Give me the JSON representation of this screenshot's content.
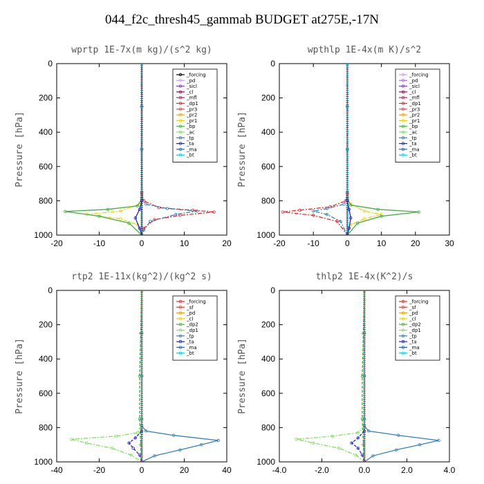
{
  "title": "044_f2c_thresh45_gammab  BUDGET at275E,-17N",
  "chart_data": [
    {
      "type": "line",
      "title": "wprtp  1E-7x(m kg)/(s^2 kg)",
      "ylabel": "Pressure [hPa]",
      "xlim": [
        -20,
        20
      ],
      "ylim": [
        0,
        1000
      ],
      "xticks": [
        "-20",
        "-10",
        "0",
        "10",
        "20"
      ],
      "yticks": [
        "0",
        "200",
        "400",
        "600",
        "800",
        "1000"
      ],
      "series": [
        {
          "name": "_forcing",
          "color": "#000000",
          "x": [
            0,
            0,
            0,
            0,
            0
          ],
          "y": [
            0,
            250,
            500,
            750,
            1000
          ]
        },
        {
          "name": "_pd",
          "color": "#c8a0e6",
          "x": [
            0,
            0,
            0,
            0,
            0
          ],
          "y": [
            0,
            250,
            500,
            750,
            1000
          ]
        },
        {
          "name": "_sicl",
          "color": "#8040c0",
          "x": [
            0,
            0,
            0,
            0,
            0
          ],
          "y": [
            0,
            250,
            500,
            750,
            1000
          ]
        },
        {
          "name": "_cl",
          "color": "#a00050",
          "x": [
            0,
            0,
            0,
            0,
            0
          ],
          "y": [
            0,
            250,
            500,
            750,
            1000
          ]
        },
        {
          "name": "_mfl",
          "color": "#d01060",
          "x": [
            0,
            0,
            0,
            0,
            0
          ],
          "y": [
            0,
            250,
            500,
            750,
            1000
          ]
        },
        {
          "name": "_dp1",
          "color": "#ff2020",
          "x": [
            0,
            0.5,
            4,
            12,
            17,
            9,
            3,
            0.5,
            0
          ],
          "y": [
            760,
            800,
            840,
            855,
            865,
            885,
            910,
            960,
            1000
          ]
        },
        {
          "name": "_pr3",
          "color": "#ff4040",
          "x": [
            0,
            0,
            0,
            0,
            0
          ],
          "y": [
            0,
            250,
            500,
            750,
            1000
          ]
        },
        {
          "name": "_pr2",
          "color": "#ffa000",
          "x": [
            0,
            0,
            0,
            0,
            0
          ],
          "y": [
            0,
            250,
            500,
            750,
            1000
          ]
        },
        {
          "name": "_pr1",
          "color": "#f0d000",
          "x": [
            0,
            -0.5,
            -5,
            -13,
            -5,
            -1,
            0
          ],
          "y": [
            780,
            820,
            860,
            880,
            905,
            940,
            1000
          ]
        },
        {
          "name": "_bp",
          "color": "#40b040",
          "x": [
            0,
            -1,
            -8,
            -18,
            -10,
            -3,
            0
          ],
          "y": [
            790,
            830,
            850,
            862,
            890,
            930,
            1000
          ]
        },
        {
          "name": "_ac",
          "color": "#80e060",
          "x": [
            0,
            0,
            0,
            0,
            0
          ],
          "y": [
            0,
            250,
            500,
            750,
            1000
          ]
        },
        {
          "name": "_tp",
          "color": "#3080c0",
          "x": [
            0,
            1,
            6,
            13,
            8,
            2,
            0.5,
            0
          ],
          "y": [
            780,
            820,
            845,
            860,
            880,
            920,
            970,
            1000
          ]
        },
        {
          "name": "_ta",
          "color": "#2020d0",
          "x": [
            0,
            -0.5,
            -1.5,
            -0.5,
            0
          ],
          "y": [
            800,
            850,
            900,
            960,
            1000
          ]
        },
        {
          "name": "_ma",
          "color": "#2060c0",
          "x": [
            0,
            0,
            0,
            0,
            0
          ],
          "y": [
            0,
            250,
            500,
            750,
            1000
          ]
        },
        {
          "name": "_bt",
          "color": "#00d0e0",
          "x": [
            0,
            0,
            0,
            0,
            0
          ],
          "y": [
            0,
            250,
            500,
            750,
            1000
          ]
        }
      ],
      "legend_placement": "top-right"
    },
    {
      "type": "line",
      "title": "wpthlp  1E-4x(m K)/s^2",
      "ylabel": "Pressure [hPa]",
      "xlim": [
        -20,
        30
      ],
      "ylim": [
        0,
        1000
      ],
      "xticks": [
        "-20",
        "-10",
        "0",
        "10",
        "20",
        "30"
      ],
      "yticks": [
        "0",
        "200",
        "400",
        "600",
        "800",
        "1000"
      ],
      "series": [
        {
          "name": "_forcing",
          "color": "#c8a0e6",
          "x": [
            0,
            0,
            0,
            0,
            0
          ],
          "y": [
            0,
            250,
            500,
            750,
            1000
          ]
        },
        {
          "name": "_pd",
          "color": "#b070d0",
          "x": [
            0,
            0,
            0,
            0,
            0
          ],
          "y": [
            0,
            250,
            500,
            750,
            1000
          ]
        },
        {
          "name": "_sicl",
          "color": "#8040c0",
          "x": [
            0,
            0,
            0,
            0,
            0
          ],
          "y": [
            0,
            250,
            500,
            750,
            1000
          ]
        },
        {
          "name": "_cl",
          "color": "#a00050",
          "x": [
            0,
            0,
            0,
            0,
            0
          ],
          "y": [
            0,
            250,
            500,
            750,
            1000
          ]
        },
        {
          "name": "_mfl",
          "color": "#d01060",
          "x": [
            0,
            0,
            0,
            0,
            0
          ],
          "y": [
            0,
            250,
            500,
            750,
            1000
          ]
        },
        {
          "name": "_dp1",
          "color": "#ff2020",
          "x": [
            0,
            -0.5,
            -5,
            -14,
            -19,
            -10,
            -3,
            0
          ],
          "y": [
            760,
            800,
            835,
            855,
            865,
            885,
            920,
            1000
          ]
        },
        {
          "name": "_pr3",
          "color": "#ff4040",
          "x": [
            0,
            0,
            0,
            0,
            0
          ],
          "y": [
            0,
            250,
            500,
            750,
            1000
          ]
        },
        {
          "name": "_pr2",
          "color": "#ffa000",
          "x": [
            0,
            0,
            0,
            0,
            0
          ],
          "y": [
            0,
            250,
            500,
            750,
            1000
          ]
        },
        {
          "name": "_pr1",
          "color": "#f0d000",
          "x": [
            0,
            1,
            5,
            10,
            5,
            1,
            0
          ],
          "y": [
            780,
            820,
            860,
            880,
            905,
            940,
            1000
          ]
        },
        {
          "name": "_bp",
          "color": "#40b040",
          "x": [
            0,
            1,
            9,
            21,
            10,
            3,
            0
          ],
          "y": [
            790,
            825,
            850,
            865,
            890,
            930,
            1000
          ]
        },
        {
          "name": "_ac",
          "color": "#80e060",
          "x": [
            0,
            0,
            0,
            0,
            0
          ],
          "y": [
            0,
            250,
            500,
            750,
            1000
          ]
        },
        {
          "name": "_tp",
          "color": "#3080c0",
          "x": [
            0,
            -1,
            -6,
            -10,
            -6,
            -2,
            0
          ],
          "y": [
            780,
            820,
            845,
            860,
            880,
            920,
            1000
          ]
        },
        {
          "name": "_ta",
          "color": "#2020d0",
          "x": [
            0,
            0.5,
            1,
            0.5,
            0
          ],
          "y": [
            800,
            850,
            900,
            960,
            1000
          ]
        },
        {
          "name": "_ma",
          "color": "#2060c0",
          "x": [
            0,
            0,
            0,
            0,
            0
          ],
          "y": [
            0,
            250,
            500,
            750,
            1000
          ]
        },
        {
          "name": "_bt",
          "color": "#00d0e0",
          "x": [
            0,
            0,
            0,
            0,
            0
          ],
          "y": [
            0,
            250,
            500,
            750,
            1000
          ]
        }
      ],
      "legend_placement": "top-right"
    },
    {
      "type": "line",
      "title": "rtp2  1E-11x(kg^2)/(kg^2 s)",
      "ylabel": "Pressure [hPa]",
      "xlim": [
        -40,
        40
      ],
      "ylim": [
        0,
        1000
      ],
      "xticks": [
        "-40",
        "-20",
        "0",
        "20",
        "40"
      ],
      "yticks": [
        "0",
        "200",
        "400",
        "600",
        "800",
        "1000"
      ],
      "series": [
        {
          "name": "_forcing",
          "color": "#ff2020",
          "x": [
            0,
            0,
            0,
            0,
            0
          ],
          "y": [
            0,
            250,
            500,
            750,
            1000
          ]
        },
        {
          "name": "_sf",
          "color": "#e04040",
          "x": [
            0,
            0,
            0,
            0,
            0
          ],
          "y": [
            0,
            250,
            500,
            750,
            1000
          ]
        },
        {
          "name": "_pd",
          "color": "#ffa000",
          "x": [
            0,
            0,
            0,
            0,
            0
          ],
          "y": [
            0,
            250,
            500,
            750,
            1000
          ]
        },
        {
          "name": "_cl",
          "color": "#f0d000",
          "x": [
            0,
            0,
            0,
            0,
            0
          ],
          "y": [
            0,
            250,
            500,
            750,
            1000
          ]
        },
        {
          "name": "_dp2",
          "color": "#40b040",
          "x": [
            0,
            -0.5,
            -1,
            -1,
            -0.5,
            0
          ],
          "y": [
            0,
            250,
            500,
            750,
            900,
            1000
          ]
        },
        {
          "name": "_dp1",
          "color": "#80e060",
          "x": [
            0,
            -2,
            -12,
            -33,
            -26,
            -14,
            -5,
            0
          ],
          "y": [
            790,
            830,
            850,
            868,
            890,
            920,
            960,
            1000
          ]
        },
        {
          "name": "_tp",
          "color": "#3080c0",
          "x": [
            0,
            2,
            15,
            36,
            28,
            18,
            6,
            0
          ],
          "y": [
            790,
            820,
            845,
            875,
            900,
            930,
            965,
            1000
          ]
        },
        {
          "name": "_ta",
          "color": "#2020d0",
          "x": [
            0,
            -3,
            -6,
            -4,
            -1,
            0
          ],
          "y": [
            820,
            860,
            890,
            920,
            960,
            1000
          ]
        },
        {
          "name": "_ma",
          "color": "#2060c0",
          "x": [
            0,
            0,
            0,
            0,
            0
          ],
          "y": [
            0,
            250,
            500,
            750,
            1000
          ]
        },
        {
          "name": "_bt",
          "color": "#00d0e0",
          "x": [
            0,
            0,
            0,
            0,
            0
          ],
          "y": [
            0,
            250,
            500,
            750,
            1000
          ]
        }
      ],
      "legend_placement": "top-right"
    },
    {
      "type": "line",
      "title": "thlp2  1E-4x(K^2)/s",
      "ylabel": "Pressure [hPa]",
      "xlim": [
        -4.0,
        4.0
      ],
      "ylim": [
        0,
        1000
      ],
      "xticks": [
        "-4.0",
        "-2.0",
        "0.0",
        "2.0",
        "4.0"
      ],
      "yticks": [
        "0",
        "200",
        "400",
        "600",
        "800",
        "1000"
      ],
      "series": [
        {
          "name": "_forcing",
          "color": "#ff2020",
          "x": [
            0,
            0,
            0,
            0,
            0
          ],
          "y": [
            0,
            250,
            500,
            750,
            1000
          ]
        },
        {
          "name": "_sf",
          "color": "#e04040",
          "x": [
            0,
            0,
            0,
            0,
            0
          ],
          "y": [
            0,
            250,
            500,
            750,
            1000
          ]
        },
        {
          "name": "_pd",
          "color": "#ffa000",
          "x": [
            0,
            0,
            0,
            0,
            0
          ],
          "y": [
            0,
            250,
            500,
            750,
            1000
          ]
        },
        {
          "name": "_cl",
          "color": "#f0d000",
          "x": [
            0,
            0,
            0,
            0,
            0
          ],
          "y": [
            0,
            250,
            500,
            750,
            1000
          ]
        },
        {
          "name": "_dp2",
          "color": "#40b040",
          "x": [
            0,
            -0.05,
            -0.1,
            -0.1,
            -0.05,
            0
          ],
          "y": [
            0,
            250,
            500,
            750,
            900,
            1000
          ]
        },
        {
          "name": "_dp1",
          "color": "#80e060",
          "x": [
            0,
            -0.3,
            -1.5,
            -3.2,
            -2.4,
            -1.2,
            -0.4,
            0
          ],
          "y": [
            790,
            830,
            850,
            868,
            890,
            920,
            960,
            1000
          ]
        },
        {
          "name": "_tp",
          "color": "#3080c0",
          "x": [
            0,
            0.2,
            1.6,
            3.5,
            2.6,
            1.5,
            0.4,
            0
          ],
          "y": [
            790,
            820,
            845,
            875,
            900,
            930,
            965,
            1000
          ]
        },
        {
          "name": "_ta",
          "color": "#2020d0",
          "x": [
            0,
            -0.3,
            -0.6,
            -0.3,
            -0.1,
            0
          ],
          "y": [
            820,
            860,
            890,
            920,
            960,
            1000
          ]
        },
        {
          "name": "_ma",
          "color": "#2060c0",
          "x": [
            0,
            0,
            0,
            0,
            0
          ],
          "y": [
            0,
            250,
            500,
            750,
            1000
          ]
        },
        {
          "name": "_bt",
          "color": "#00d0e0",
          "x": [
            0,
            0,
            0,
            0,
            0
          ],
          "y": [
            0,
            250,
            500,
            750,
            1000
          ]
        }
      ],
      "legend_placement": "top-right"
    }
  ]
}
